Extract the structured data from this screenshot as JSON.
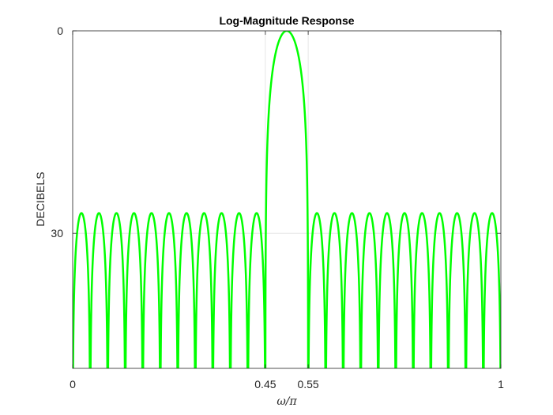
{
  "chart_data": {
    "type": "line",
    "title": "Log-Magnitude Response",
    "xlabel": "ω/π",
    "ylabel": "DECIBELS",
    "xlim": [
      0,
      1
    ],
    "ylim": [
      -50,
      0
    ],
    "x_ticks": [
      {
        "value": 0,
        "label": "0"
      },
      {
        "value": 0.45,
        "label": "0.45"
      },
      {
        "value": 0.55,
        "label": "0.55"
      },
      {
        "value": 1,
        "label": "1"
      }
    ],
    "y_ticks": [
      {
        "value": 0,
        "label": "0"
      },
      {
        "value": -30,
        "label": "30"
      }
    ],
    "grid": true,
    "series": [
      {
        "color": "#00ff00",
        "passband_center": 0.5,
        "mainlobe_edges": [
          0.45,
          0.55
        ],
        "sidelobe_peak_db": -27,
        "sidelobes_per_side": 11
      }
    ]
  }
}
